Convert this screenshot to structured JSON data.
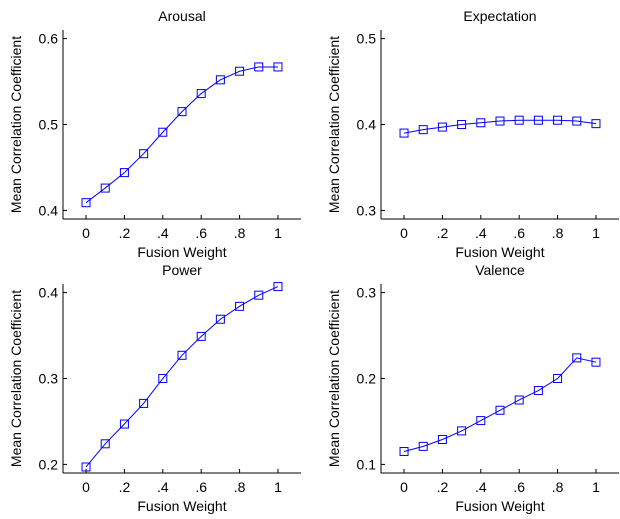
{
  "chart_data": [
    {
      "type": "line",
      "title": "Arousal",
      "xlabel": "Fusion Weight",
      "ylabel": "Mean Correlation Coefficient",
      "x": [
        0,
        0.1,
        0.2,
        0.3,
        0.4,
        0.5,
        0.6,
        0.7,
        0.8,
        0.9,
        1
      ],
      "xticks": [
        "0",
        ".2",
        ".4",
        ".6",
        ".8",
        "1"
      ],
      "xlim": [
        -0.12,
        1.12
      ],
      "yticks": [
        "0.4",
        "0.5",
        "0.6"
      ],
      "ylim": [
        0.39,
        0.61
      ],
      "series": [
        {
          "values": [
            0.409,
            0.426,
            0.444,
            0.466,
            0.491,
            0.515,
            0.536,
            0.552,
            0.562,
            0.567,
            0.567
          ],
          "marker": "square",
          "color": "#0000ff"
        }
      ],
      "grid": false
    },
    {
      "type": "line",
      "title": "Expectation",
      "xlabel": "Fusion Weight",
      "ylabel": "Mean Correlation Coefficient",
      "x": [
        0,
        0.1,
        0.2,
        0.3,
        0.4,
        0.5,
        0.6,
        0.7,
        0.8,
        0.9,
        1
      ],
      "xticks": [
        "0",
        ".2",
        ".4",
        ".6",
        ".8",
        "1"
      ],
      "xlim": [
        -0.12,
        1.12
      ],
      "yticks": [
        "0.3",
        "0.4",
        "0.5"
      ],
      "ylim": [
        0.29,
        0.51
      ],
      "series": [
        {
          "values": [
            0.39,
            0.394,
            0.397,
            0.4,
            0.402,
            0.404,
            0.405,
            0.405,
            0.405,
            0.404,
            0.401
          ],
          "marker": "square",
          "color": "#0000ff"
        }
      ],
      "grid": false
    },
    {
      "type": "line",
      "title": "Power",
      "xlabel": "Fusion Weight",
      "ylabel": "Mean Correlation Coefficient",
      "x": [
        0,
        0.1,
        0.2,
        0.3,
        0.4,
        0.5,
        0.6,
        0.7,
        0.8,
        0.9,
        1
      ],
      "xticks": [
        "0",
        ".2",
        ".4",
        ".6",
        ".8",
        "1"
      ],
      "xlim": [
        -0.12,
        1.12
      ],
      "yticks": [
        "0.2",
        "0.3",
        "0.4"
      ],
      "ylim": [
        0.19,
        0.41
      ],
      "series": [
        {
          "values": [
            0.197,
            0.224,
            0.247,
            0.271,
            0.3,
            0.327,
            0.349,
            0.369,
            0.384,
            0.397,
            0.407
          ],
          "marker": "square",
          "color": "#0000ff"
        }
      ],
      "grid": false
    },
    {
      "type": "line",
      "title": "Valence",
      "xlabel": "Fusion Weight",
      "ylabel": "Mean Correlation Coefficient",
      "x": [
        0,
        0.1,
        0.2,
        0.3,
        0.4,
        0.5,
        0.6,
        0.7,
        0.8,
        0.9,
        1
      ],
      "xticks": [
        "0",
        ".2",
        ".4",
        ".6",
        ".8",
        "1"
      ],
      "xlim": [
        -0.12,
        1.12
      ],
      "yticks": [
        "0.1",
        "0.2",
        "0.3"
      ],
      "ylim": [
        0.09,
        0.31
      ],
      "series": [
        {
          "values": [
            0.115,
            0.121,
            0.129,
            0.139,
            0.151,
            0.163,
            0.175,
            0.186,
            0.2,
            0.224,
            0.219
          ],
          "marker": "square",
          "color": "#0000ff"
        }
      ],
      "grid": false
    }
  ]
}
